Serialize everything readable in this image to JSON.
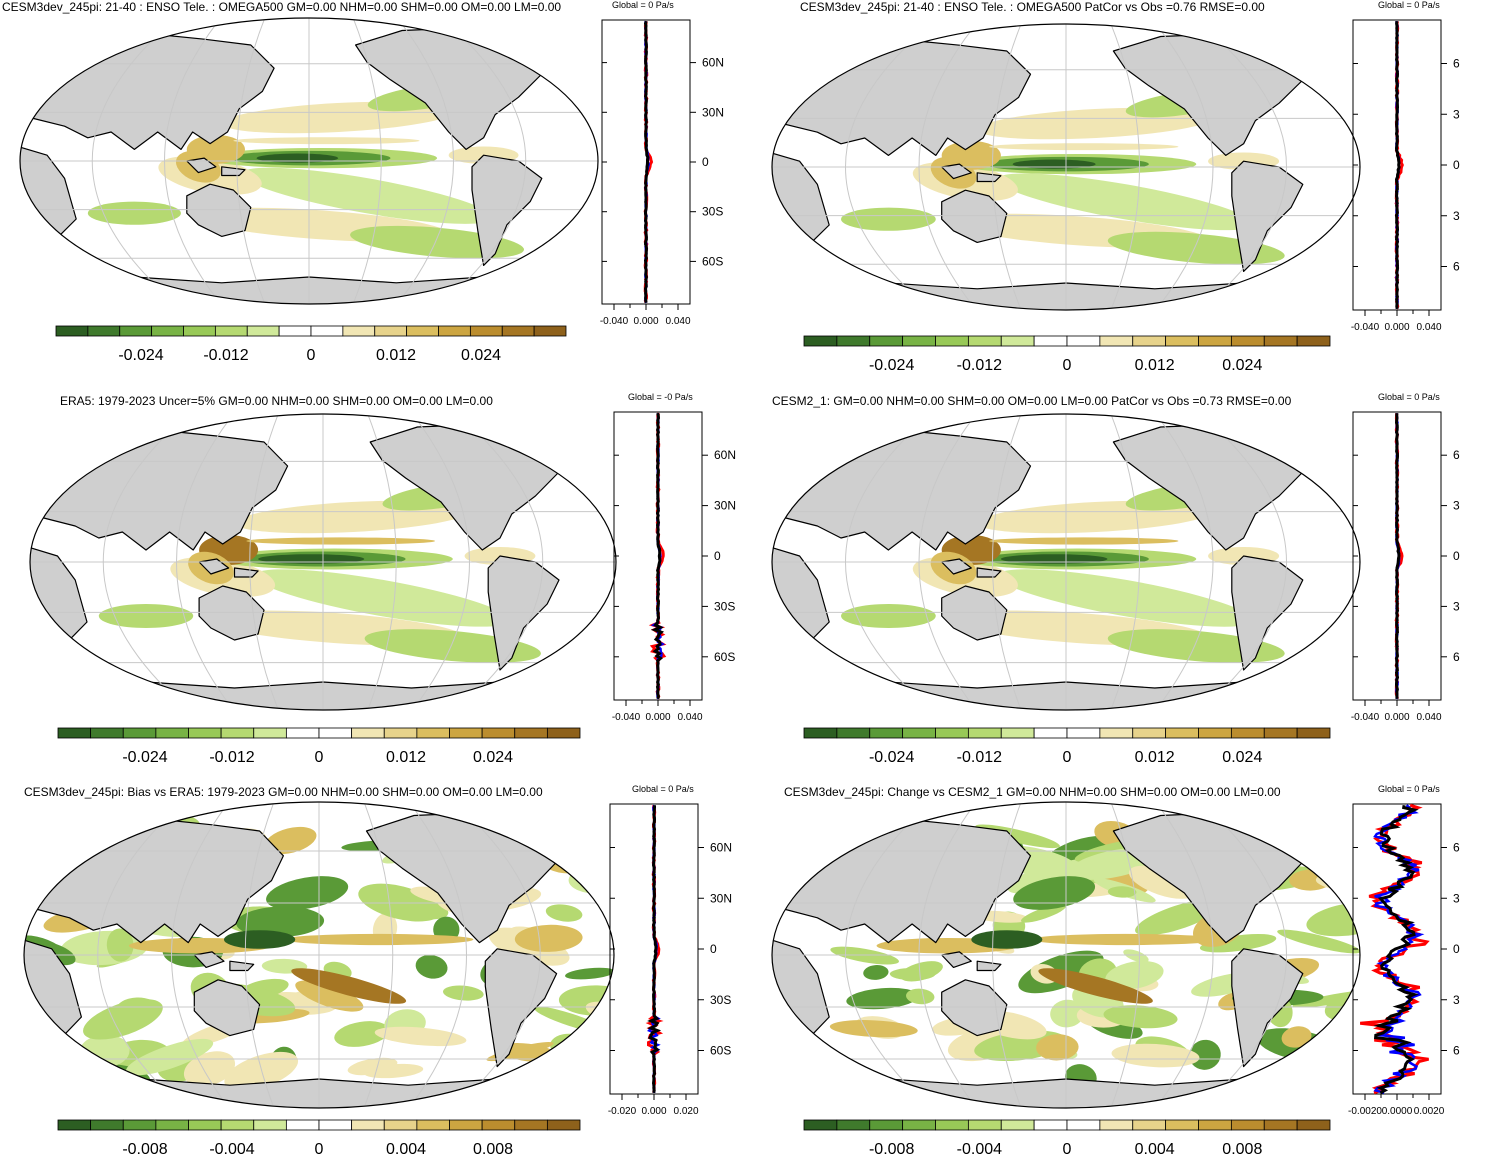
{
  "panels": [
    {
      "title": "CESM3dev_245pi: 21-40 : ENSO Tele. : OMEGA500 GM=0.00 NHM=0.00 SHM=0.00 OM=0.00 LM=0.00",
      "zonal_title": "Global = 0 Pa/s",
      "lat_labels": [
        "60N",
        "30N",
        "0",
        "30S",
        "60S"
      ],
      "x_ticks": [
        "-0.040",
        "0.000",
        "0.040"
      ],
      "colorbar_labels": [
        "-0.024",
        "-0.012",
        "0",
        "0.012",
        "0.024"
      ]
    },
    {
      "title": "CESM3dev_245pi: 21-40 : ENSO Tele. : OMEGA500 PatCor vs Obs =0.76 RMSE=0.00",
      "zonal_title": "Global = 0 Pa/s",
      "lat_labels": [
        "6",
        "3",
        "0",
        "3",
        "6"
      ],
      "x_ticks": [
        "-0.040",
        "0.000",
        "0.040"
      ],
      "colorbar_labels": [
        "-0.024",
        "-0.012",
        "0",
        "0.012",
        "0.024"
      ]
    },
    {
      "title": "ERA5: 1979-2023 Uncer=5% GM=0.00 NHM=0.00 SHM=0.00 OM=0.00 LM=0.00",
      "zonal_title": "Global = -0 Pa/s",
      "lat_labels": [
        "60N",
        "30N",
        "0",
        "30S",
        "60S"
      ],
      "x_ticks": [
        "-0.040",
        "0.000",
        "0.040"
      ],
      "colorbar_labels": [
        "-0.024",
        "-0.012",
        "0",
        "0.012",
        "0.024"
      ]
    },
    {
      "title": "CESM2_1: GM=0.00 NHM=0.00 SHM=0.00 OM=0.00 LM=0.00 PatCor vs Obs =0.73 RMSE=0.00",
      "zonal_title": "Global = 0 Pa/s",
      "lat_labels": [
        "6",
        "3",
        "0",
        "3",
        "6"
      ],
      "x_ticks": [
        "-0.040",
        "0.000",
        "0.040"
      ],
      "colorbar_labels": [
        "-0.024",
        "-0.012",
        "0",
        "0.012",
        "0.024"
      ]
    },
    {
      "title": "CESM3dev_245pi: Bias vs ERA5: 1979-2023 GM=0.00 NHM=0.00 SHM=0.00 OM=0.00 LM=0.00",
      "zonal_title": "Global = 0 Pa/s",
      "lat_labels": [
        "60N",
        "30N",
        "0",
        "30S",
        "60S"
      ],
      "x_ticks": [
        "-0.020",
        "0.000",
        "0.020"
      ],
      "colorbar_labels": [
        "-0.008",
        "-0.004",
        "0",
        "0.004",
        "0.008"
      ]
    },
    {
      "title": "CESM3dev_245pi: Change vs CESM2_1 GM=0.00 NHM=0.00 SHM=0.00 OM=0.00 LM=0.00",
      "zonal_title": "Global = 0 Pa/s",
      "lat_labels": [
        "6",
        "3",
        "0",
        "3",
        "6"
      ],
      "x_ticks": [
        "-0.0020",
        "0.0000",
        "0.0020"
      ],
      "colorbar_labels": [
        "-0.008",
        "-0.004",
        "0",
        "0.004",
        "0.008"
      ]
    }
  ],
  "palette": [
    "#2c5e22",
    "#3f7a2c",
    "#5a9a37",
    "#78b345",
    "#98c957",
    "#b5d971",
    "#d0e99a",
    "#ffffff",
    "#ffffff",
    "#f1e6b4",
    "#e7d38b",
    "#dbbe5f",
    "#cca541",
    "#bb8d2e",
    "#a57623",
    "#8e611b"
  ],
  "land_color": "#cfcfcf",
  "line_colors": {
    "model": "#000000",
    "obs": "#ff0000",
    "other": "#0000ff"
  }
}
